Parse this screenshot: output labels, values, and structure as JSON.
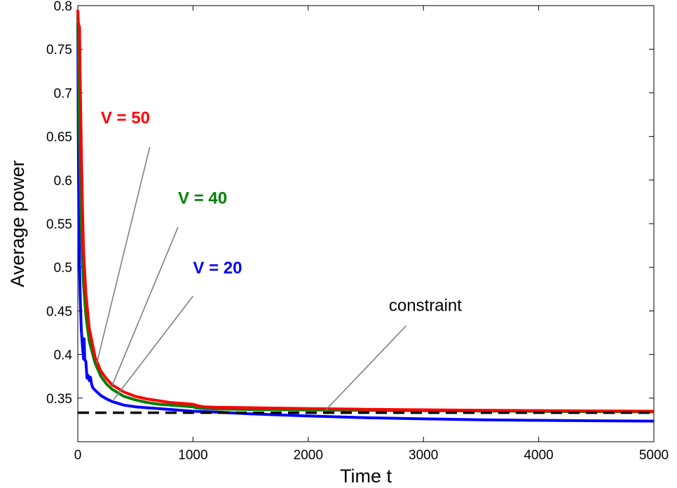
{
  "chart_data": {
    "type": "line",
    "title": "",
    "xlabel": "Time t",
    "ylabel": "Average power",
    "xlim": [
      0,
      5000
    ],
    "ylim": [
      0.3,
      0.8
    ],
    "xticks": [
      0,
      1000,
      2000,
      3000,
      4000,
      5000
    ],
    "yticks": [
      0.35,
      0.4,
      0.45,
      0.5,
      0.55,
      0.6,
      0.65,
      0.7,
      0.75,
      0.8
    ],
    "ytick_labels": [
      "0.35",
      "0.4",
      "0.45",
      "0.5",
      "0.55",
      "0.6",
      "0.65",
      "0.7",
      "0.75",
      "0.8"
    ],
    "grid": false,
    "series": [
      {
        "name": "V = 20",
        "color": "#0000ff",
        "x": [
          0,
          5,
          10,
          20,
          30,
          40,
          50,
          55,
          60,
          70,
          80,
          90,
          100,
          110,
          120,
          130,
          150,
          175,
          200,
          250,
          300,
          400,
          500,
          600,
          700,
          800,
          900,
          1000,
          1200,
          1500,
          2000,
          2500,
          3000,
          3500,
          4000,
          4500,
          5000
        ],
        "y": [
          0.78,
          0.64,
          0.54,
          0.47,
          0.43,
          0.41,
          0.395,
          0.418,
          0.394,
          0.392,
          0.373,
          0.376,
          0.37,
          0.374,
          0.366,
          0.362,
          0.359,
          0.356,
          0.353,
          0.349,
          0.346,
          0.342,
          0.34,
          0.339,
          0.338,
          0.337,
          0.336,
          0.335,
          0.334,
          0.332,
          0.3295,
          0.3275,
          0.3262,
          0.3252,
          0.3245,
          0.324,
          0.3236
        ]
      },
      {
        "name": "V = 40",
        "color": "#008000",
        "x": [
          0,
          10,
          20,
          30,
          40,
          50,
          70,
          100,
          150,
          200,
          250,
          300,
          400,
          500,
          600,
          700,
          800,
          900,
          1000,
          1020,
          1100,
          1200,
          1500,
          2000,
          2500,
          3000,
          3500,
          4000,
          4500,
          5000
        ],
        "y": [
          0.79,
          0.7,
          0.61,
          0.55,
          0.51,
          0.48,
          0.445,
          0.415,
          0.39,
          0.375,
          0.366,
          0.36,
          0.352,
          0.348,
          0.345,
          0.343,
          0.342,
          0.341,
          0.34,
          0.339,
          0.338,
          0.3375,
          0.337,
          0.3365,
          0.336,
          0.3356,
          0.3352,
          0.3348,
          0.3345,
          0.3342
        ]
      },
      {
        "name": "V = 50",
        "color": "#ff0000",
        "x": [
          0,
          5,
          15,
          20,
          30,
          40,
          50,
          70,
          100,
          150,
          200,
          250,
          300,
          400,
          500,
          600,
          700,
          800,
          900,
          1000,
          1050,
          1100,
          1200,
          1500,
          2000,
          2500,
          3000,
          3500,
          4000,
          4500,
          5000
        ],
        "y": [
          0.795,
          0.78,
          0.775,
          0.72,
          0.64,
          0.57,
          0.52,
          0.47,
          0.43,
          0.397,
          0.381,
          0.372,
          0.365,
          0.357,
          0.352,
          0.349,
          0.347,
          0.345,
          0.344,
          0.343,
          0.341,
          0.34,
          0.3395,
          0.339,
          0.338,
          0.3372,
          0.3366,
          0.3361,
          0.3357,
          0.3353,
          0.335
        ]
      },
      {
        "name": "constraint",
        "color": "#000000",
        "dashed": true,
        "x": [
          0,
          5000
        ],
        "y": [
          0.3333,
          0.3333
        ]
      }
    ],
    "annotations": [
      {
        "text": "V = 50",
        "color": "#ff0000",
        "bold": true,
        "text_x": 200,
        "text_y": 0.665,
        "point_x": 165,
        "point_y": 0.39,
        "anchor_x": 625,
        "anchor_y": 0.638
      },
      {
        "text": "V = 40",
        "color": "#008000",
        "bold": true,
        "text_x": 870,
        "text_y": 0.573,
        "point_x": 300,
        "point_y": 0.365,
        "anchor_x": 870,
        "anchor_y": 0.546
      },
      {
        "text": "V = 20",
        "color": "#0000ff",
        "bold": true,
        "text_x": 1000,
        "text_y": 0.493,
        "point_x": 310,
        "point_y": 0.348,
        "anchor_x": 1000,
        "anchor_y": 0.467
      },
      {
        "text": "constraint",
        "color": "#000000",
        "bold": false,
        "text_x": 2700,
        "text_y": 0.45,
        "point_x": 2150,
        "point_y": 0.336,
        "anchor_x": 2850,
        "anchor_y": 0.433
      }
    ]
  }
}
